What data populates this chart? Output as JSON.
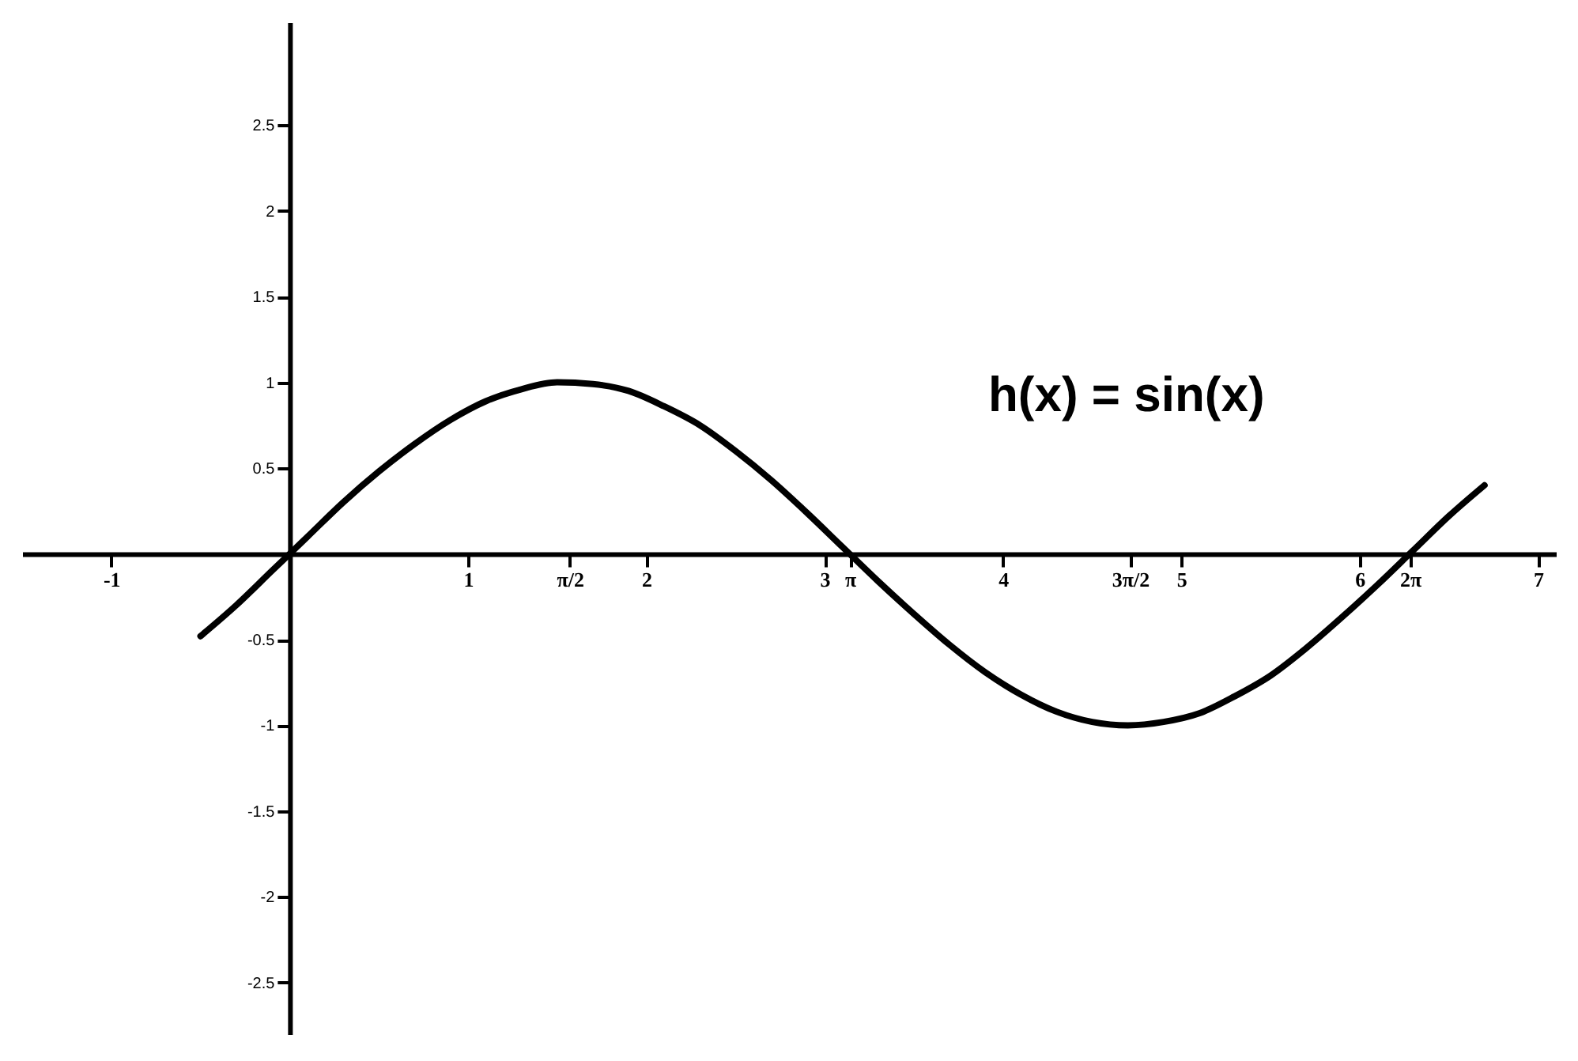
{
  "chart_data": {
    "type": "line",
    "annotations": [
      "h(x) = sin(x)"
    ],
    "x": [
      -0.5,
      -0.3,
      -0.1,
      0.1,
      0.3,
      0.5,
      0.7,
      0.9,
      1.1,
      1.3,
      1.5,
      1.7,
      1.9,
      2.1,
      2.3,
      2.5,
      2.7,
      2.9,
      3.1,
      3.3,
      3.5,
      3.7,
      3.9,
      4.1,
      4.3,
      4.5,
      4.7,
      4.9,
      5.1,
      5.3,
      5.5,
      5.7,
      5.9,
      6.1,
      6.3,
      6.5,
      6.7
    ],
    "series": [
      {
        "color": "#000000",
        "values": [
          -0.48,
          -0.3,
          -0.1,
          0.1,
          0.3,
          0.48,
          0.64,
          0.78,
          0.89,
          0.96,
          1.0,
          0.99,
          0.95,
          0.86,
          0.75,
          0.6,
          0.43,
          0.24,
          0.04,
          -0.16,
          -0.35,
          -0.53,
          -0.69,
          -0.82,
          -0.92,
          -0.98,
          -1.0,
          -0.98,
          -0.93,
          -0.83,
          -0.71,
          -0.55,
          -0.37,
          -0.18,
          0.02,
          0.22,
          0.4
        ]
      }
    ],
    "xlim": [
      -1.5,
      7.1
    ],
    "ylim": [
      -2.8,
      3.1
    ],
    "xticks": [
      -1,
      1,
      {
        "value": 1.5708,
        "label": "π/2"
      },
      2,
      3,
      {
        "value": 3.1416,
        "label": "π"
      },
      4,
      {
        "value": 4.7124,
        "label": "3π/2"
      },
      5,
      6,
      {
        "value": 6.2832,
        "label": "2π"
      },
      7
    ],
    "yticks": [
      -2.5,
      -2,
      -1.5,
      -1,
      -0.5,
      0.5,
      1,
      1.5,
      2,
      2.5
    ],
    "grid": false,
    "legend": false
  }
}
